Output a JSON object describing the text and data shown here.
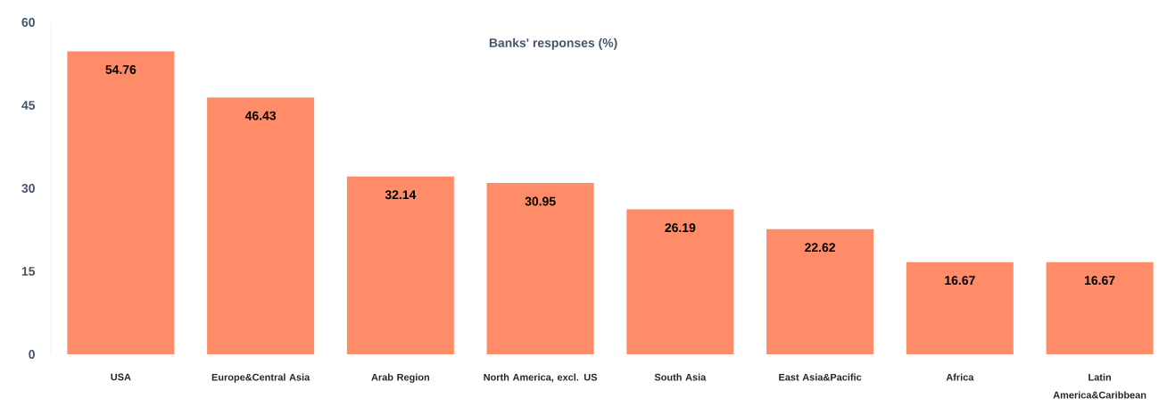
{
  "chart_data": {
    "type": "bar",
    "title": "Banks' responses (%)",
    "categories": [
      "USA",
      "Europe&Central Asia",
      "Arab Region",
      "North America, excl. US",
      "South Asia",
      "East Asia&Pacific",
      "Africa",
      "Latin America&Caribbean"
    ],
    "values": [
      54.76,
      46.43,
      32.14,
      30.95,
      26.19,
      22.62,
      16.67,
      16.67
    ],
    "color": "#ff8c69",
    "ylim": [
      0,
      60
    ],
    "yticks": [
      0,
      15,
      30,
      45,
      60
    ],
    "data_labels": true
  }
}
